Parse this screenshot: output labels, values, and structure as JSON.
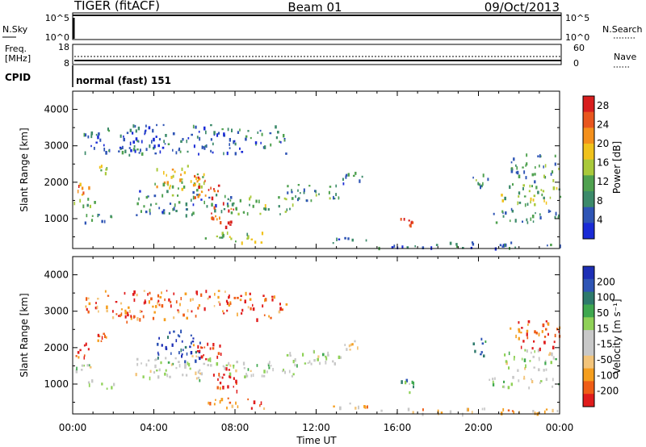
{
  "header": {
    "radar": "TIGER (fitACF)",
    "beam": "Beam 01",
    "date": "09/Oct/2013"
  },
  "top_panels": {
    "nsky_label": "N.Sky",
    "nsky_ticks": [
      "10^5",
      "10^0"
    ],
    "nsearch_label": "N.Search",
    "freq_label_1": "Freq.",
    "freq_label_2": "[MHz]",
    "freq_ticks": [
      "18",
      "8"
    ],
    "nave_label": "Nave",
    "nave_ticks": [
      "60",
      "0"
    ],
    "cpid_label": "CPID",
    "cpid_text": "normal (fast) 151"
  },
  "colors": {
    "power_scale": [
      "#1a2bd6",
      "#2f55b5",
      "#3c8a6a",
      "#4fa14f",
      "#a9c93a",
      "#f0c21c",
      "#f4901c",
      "#e8561e",
      "#d81e1e"
    ],
    "velocity_scale": [
      "#e01c1c",
      "#ef5d16",
      "#f59e1e",
      "#f3c47a",
      "#c8c8c8",
      "#c8c8c8",
      "#8fd157",
      "#3fa84f",
      "#2e7a6c",
      "#2f55b5",
      "#1d2fb5"
    ]
  },
  "chart_data": [
    {
      "type": "heatmap",
      "title": "Power",
      "xlabel": "Time UT",
      "ylabel": "Slant Range [km]",
      "xlim_hours": [
        0,
        24
      ],
      "x_ticks": [
        "00:00",
        "04:00",
        "08:00",
        "12:00",
        "16:00",
        "20:00",
        "00:00"
      ],
      "ylim": [
        180,
        4500
      ],
      "y_ticks": [
        1000,
        2000,
        3000,
        4000
      ],
      "colorbar_label": "Power [dB]",
      "colorbar_ticks": [
        4,
        8,
        12,
        16,
        20,
        24,
        28
      ],
      "colorbar_range": [
        0,
        30
      ],
      "echo_regions": [
        {
          "t": [
            0.0,
            0.8
          ],
          "r": [
            1650,
            2150
          ],
          "level": 0.8
        },
        {
          "t": [
            0.0,
            1.2
          ],
          "r": [
            1300,
            1600
          ],
          "level": 0.35
        },
        {
          "t": [
            0.3,
            2.0
          ],
          "r": [
            900,
            1200
          ],
          "level": 0.3
        },
        {
          "t": [
            1.2,
            1.7
          ],
          "r": [
            2200,
            2500
          ],
          "level": 0.5
        },
        {
          "t": [
            2.2,
            3.0
          ],
          "r": [
            2700,
            3100
          ],
          "level": 0.2
        },
        {
          "t": [
            3.0,
            8.0
          ],
          "r": [
            1100,
            1800
          ],
          "level": 0.25
        },
        {
          "t": [
            4.0,
            6.5
          ],
          "r": [
            1600,
            2500
          ],
          "level": 0.55
        },
        {
          "t": [
            5.8,
            7.5
          ],
          "r": [
            1600,
            2200
          ],
          "level": 0.85
        },
        {
          "t": [
            6.8,
            8.2
          ],
          "r": [
            800,
            1500
          ],
          "level": 0.85
        },
        {
          "t": [
            6.5,
            9.5
          ],
          "r": [
            350,
            650
          ],
          "level": 0.45
        },
        {
          "t": [
            8.0,
            11.0
          ],
          "r": [
            1150,
            1650
          ],
          "level": 0.4
        },
        {
          "t": [
            10.5,
            13.5
          ],
          "r": [
            1500,
            2000
          ],
          "level": 0.3
        },
        {
          "t": [
            13.2,
            14.3
          ],
          "r": [
            1900,
            2300
          ],
          "level": 0.25
        },
        {
          "t": [
            12.0,
            14.5
          ],
          "r": [
            350,
            500
          ],
          "level": 0.2
        },
        {
          "t": [
            16.0,
            16.8
          ],
          "r": [
            800,
            1150
          ],
          "level": 0.9
        },
        {
          "t": [
            15.0,
            24.0
          ],
          "r": [
            200,
            380
          ],
          "level": 0.2
        },
        {
          "t": [
            19.5,
            20.5
          ],
          "r": [
            1800,
            2300
          ],
          "level": 0.3
        },
        {
          "t": [
            20.5,
            24.0
          ],
          "r": [
            900,
            1300
          ],
          "level": 0.25
        },
        {
          "t": [
            21.0,
            24.0
          ],
          "r": [
            1400,
            2000
          ],
          "level": 0.45
        },
        {
          "t": [
            21.5,
            24.0
          ],
          "r": [
            2000,
            2800
          ],
          "level": 0.3
        },
        {
          "t": [
            0.5,
            10.5
          ],
          "r": [
            2800,
            3600
          ],
          "level": 0.2
        }
      ]
    },
    {
      "type": "heatmap",
      "title": "Velocity",
      "xlabel": "Time UT",
      "ylabel": "Slant Range [km]",
      "xlim_hours": [
        0,
        24
      ],
      "x_ticks": [
        "00:00",
        "04:00",
        "08:00",
        "12:00",
        "16:00",
        "20:00",
        "00:00"
      ],
      "ylim": [
        180,
        4500
      ],
      "y_ticks": [
        1000,
        2000,
        3000,
        4000
      ],
      "colorbar_label": "Velocity [m s⁻¹]",
      "colorbar_ticks": [
        200,
        100,
        50,
        15,
        -15,
        -50,
        -100,
        -200
      ],
      "echo_regions": [
        {
          "t": [
            0.0,
            0.9
          ],
          "r": [
            1700,
            2200
          ],
          "level": 0.05
        },
        {
          "t": [
            0.0,
            1.2
          ],
          "r": [
            1300,
            1600
          ],
          "level": 0.5
        },
        {
          "t": [
            0.2,
            2.0
          ],
          "r": [
            850,
            1150
          ],
          "level": 0.48
        },
        {
          "t": [
            1.2,
            1.7
          ],
          "r": [
            2200,
            2500
          ],
          "level": 0.1
        },
        {
          "t": [
            2.2,
            3.0
          ],
          "r": [
            2700,
            3100
          ],
          "level": 0.1
        },
        {
          "t": [
            3.0,
            8.0
          ],
          "r": [
            1100,
            1800
          ],
          "level": 0.5
        },
        {
          "t": [
            4.0,
            6.5
          ],
          "r": [
            1600,
            2500
          ],
          "level": 0.95
        },
        {
          "t": [
            5.8,
            7.5
          ],
          "r": [
            1700,
            2200
          ],
          "level": 0.05
        },
        {
          "t": [
            6.8,
            8.2
          ],
          "r": [
            800,
            1500
          ],
          "level": 0.02
        },
        {
          "t": [
            6.5,
            9.5
          ],
          "r": [
            350,
            650
          ],
          "level": 0.12
        },
        {
          "t": [
            8.0,
            11.0
          ],
          "r": [
            1150,
            1650
          ],
          "level": 0.5
        },
        {
          "t": [
            10.5,
            13.5
          ],
          "r": [
            1500,
            2000
          ],
          "level": 0.5
        },
        {
          "t": [
            13.2,
            14.3
          ],
          "r": [
            1900,
            2300
          ],
          "level": 0.3
        },
        {
          "t": [
            12.0,
            14.5
          ],
          "r": [
            350,
            500
          ],
          "level": 0.3
        },
        {
          "t": [
            16.0,
            16.8
          ],
          "r": [
            800,
            1150
          ],
          "level": 0.7
        },
        {
          "t": [
            15.0,
            24.0
          ],
          "r": [
            200,
            380
          ],
          "level": 0.3
        },
        {
          "t": [
            19.5,
            20.5
          ],
          "r": [
            1800,
            2300
          ],
          "level": 0.85
        },
        {
          "t": [
            20.5,
            24.0
          ],
          "r": [
            900,
            1300
          ],
          "level": 0.5
        },
        {
          "t": [
            21.0,
            24.0
          ],
          "r": [
            1400,
            2000
          ],
          "level": 0.5
        },
        {
          "t": [
            21.5,
            24.0
          ],
          "r": [
            2000,
            2800
          ],
          "level": 0.1
        },
        {
          "t": [
            0.5,
            10.5
          ],
          "r": [
            2800,
            3600
          ],
          "level": 0.15
        }
      ]
    }
  ]
}
